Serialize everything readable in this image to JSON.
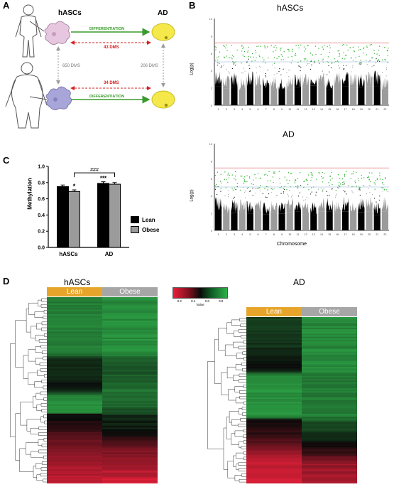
{
  "panels": {
    "a": {
      "label": "A",
      "col_left": "hASCs",
      "col_right": "AD",
      "arrow_top": "DIFFERENTIATION",
      "arrow_bottom": "DIFFERENTIATION",
      "dms_top": "43 DMS",
      "dms_bottom": "34 DMS",
      "dms_left": "650 DMS",
      "dms_right": "206 DMS",
      "colors": {
        "green": "#3a9a2c",
        "red": "#d42020",
        "grey": "#9a9a9a",
        "adipocyte": "#f4e84a",
        "lean_cell": "#e7c6df",
        "obese_cell": "#a8a6d8"
      }
    },
    "b": {
      "label": "B",
      "top_title": "hASCs",
      "bottom_title": "AD",
      "ylabel": "Log(p)",
      "xlabel": "Chromosome",
      "chromosomes": [
        "1",
        "2",
        "3",
        "4",
        "5",
        "6",
        "7",
        "8",
        "9",
        "10",
        "11",
        "12",
        "13",
        "14",
        "15",
        "16",
        "17",
        "18",
        "19",
        "20",
        "21",
        "22"
      ],
      "yticks": [
        "0",
        "2",
        "4",
        "6",
        "8",
        "10"
      ],
      "colors": {
        "chrom_dark": "#000000",
        "chrom_light": "#9b9b9b",
        "hits": "#2db52d",
        "threshold": "#e06060"
      }
    },
    "c": {
      "label": "C",
      "legend_lean": "Lean",
      "legend_obese": "Obese",
      "sig_star": "*",
      "sig_triple": "***",
      "sig_hash": "###",
      "chart_data": {
        "type": "bar",
        "categories": [
          "hASCs",
          "AD"
        ],
        "series": [
          {
            "name": "Lean",
            "values": [
              0.75,
              0.79
            ],
            "errors": [
              0.02,
              0.02
            ],
            "color": "#000000"
          },
          {
            "name": "Obese",
            "values": [
              0.69,
              0.78
            ],
            "errors": [
              0.02,
              0.02
            ],
            "color": "#9b9b9b"
          }
        ],
        "xlabel": "",
        "ylabel": "Methylation",
        "ylim": [
          0.0,
          1.0
        ],
        "yticks": [
          "0.0",
          "0.2",
          "0.4",
          "0.6",
          "0.8",
          "1.0"
        ],
        "legend": "right"
      }
    },
    "d": {
      "label": "D",
      "left_title": "hASCs",
      "right_title": "AD",
      "col_lean": "Lean",
      "col_obese": "Obese",
      "scale_ticks": [
        "0.2",
        "0.4",
        "0.6",
        "0.8"
      ],
      "scale_label": "Value",
      "colors": {
        "lean_header": "#e6a52a",
        "obese_header": "#a6a6a6",
        "low": "#e8203a",
        "mid": "#0a0a0a",
        "high": "#2fb04a"
      }
    }
  }
}
